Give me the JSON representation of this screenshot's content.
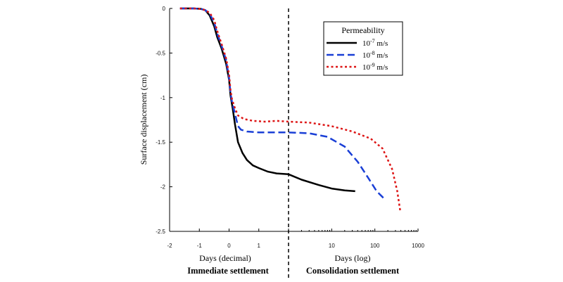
{
  "chart_data": {
    "type": "line",
    "xlabel_left": "Days (decimal)",
    "xlabel_right": "Days (log)",
    "ylabel": "Surface displacement (cm)",
    "ylim": [
      -2.5,
      0
    ],
    "left_axis": {
      "xlim": [
        -2,
        2
      ],
      "ticks": [
        "-2",
        "-1",
        "0",
        "1"
      ],
      "scale": "linear"
    },
    "right_axis": {
      "xlim": [
        1,
        1000
      ],
      "ticks": [
        "10",
        "100",
        "1000"
      ],
      "scale": "log"
    },
    "y_ticks": [
      "0",
      "-0.5",
      "-1",
      "-1.5",
      "-2",
      "-2.5"
    ],
    "regions": [
      "Immediate settlement",
      "Consolidation settlement"
    ],
    "legend": {
      "title": "Permeability",
      "position": "top-right",
      "entries": [
        {
          "base": "10",
          "exp": "-7",
          "unit": "m/s"
        },
        {
          "base": "10",
          "exp": "-8",
          "unit": "m/s"
        },
        {
          "base": "10",
          "exp": "-9",
          "unit": "m/s"
        }
      ]
    },
    "series": [
      {
        "color": "#000000",
        "dash": "solid",
        "left": [
          [
            -1.65,
            0
          ],
          [
            -1.2,
            0
          ],
          [
            -0.95,
            -0.005
          ],
          [
            -0.8,
            -0.02
          ],
          [
            -0.65,
            -0.08
          ],
          [
            -0.5,
            -0.2
          ],
          [
            -0.4,
            -0.32
          ],
          [
            -0.25,
            -0.45
          ],
          [
            -0.1,
            -0.62
          ],
          [
            0,
            -0.8
          ],
          [
            0.05,
            -0.98
          ],
          [
            0.12,
            -1.12
          ],
          [
            0.2,
            -1.3
          ],
          [
            0.3,
            -1.5
          ],
          [
            0.45,
            -1.62
          ],
          [
            0.6,
            -1.7
          ],
          [
            0.8,
            -1.76
          ],
          [
            1.0,
            -1.79
          ],
          [
            1.3,
            -1.83
          ],
          [
            1.6,
            -1.85
          ],
          [
            2,
            -1.86
          ]
        ],
        "right": [
          [
            1,
            -1.86
          ],
          [
            2,
            -1.92
          ],
          [
            5,
            -1.98
          ],
          [
            10,
            -2.02
          ],
          [
            20,
            -2.04
          ],
          [
            35,
            -2.05
          ]
        ]
      },
      {
        "color": "#1a3fd6",
        "dash": "dashed",
        "left": [
          [
            -1.65,
            0
          ],
          [
            -1.2,
            0
          ],
          [
            -0.95,
            -0.005
          ],
          [
            -0.8,
            -0.02
          ],
          [
            -0.65,
            -0.06
          ],
          [
            -0.5,
            -0.16
          ],
          [
            -0.4,
            -0.28
          ],
          [
            -0.25,
            -0.42
          ],
          [
            -0.1,
            -0.58
          ],
          [
            0,
            -0.78
          ],
          [
            0.05,
            -0.95
          ],
          [
            0.1,
            -1.05
          ],
          [
            0.2,
            -1.18
          ],
          [
            0.3,
            -1.32
          ],
          [
            0.4,
            -1.36
          ],
          [
            0.6,
            -1.38
          ],
          [
            1,
            -1.39
          ],
          [
            1.5,
            -1.39
          ],
          [
            2,
            -1.39
          ]
        ],
        "right": [
          [
            1,
            -1.39
          ],
          [
            3,
            -1.4
          ],
          [
            8,
            -1.44
          ],
          [
            20,
            -1.55
          ],
          [
            40,
            -1.72
          ],
          [
            70,
            -1.9
          ],
          [
            110,
            -2.05
          ],
          [
            170,
            -2.14
          ]
        ]
      },
      {
        "color": "#dd1515",
        "dash": "dotted",
        "left": [
          [
            -1.65,
            0
          ],
          [
            -1.2,
            0
          ],
          [
            -0.95,
            -0.005
          ],
          [
            -0.8,
            -0.02
          ],
          [
            -0.65,
            -0.05
          ],
          [
            -0.5,
            -0.13
          ],
          [
            -0.4,
            -0.25
          ],
          [
            -0.25,
            -0.4
          ],
          [
            -0.1,
            -0.56
          ],
          [
            0,
            -0.74
          ],
          [
            0.05,
            -0.92
          ],
          [
            0.1,
            -1.02
          ],
          [
            0.2,
            -1.12
          ],
          [
            0.3,
            -1.2
          ],
          [
            0.5,
            -1.24
          ],
          [
            0.8,
            -1.26
          ],
          [
            1.2,
            -1.27
          ],
          [
            1.6,
            -1.26
          ],
          [
            2,
            -1.27
          ]
        ],
        "right": [
          [
            1,
            -1.27
          ],
          [
            3,
            -1.28
          ],
          [
            10,
            -1.32
          ],
          [
            30,
            -1.38
          ],
          [
            80,
            -1.46
          ],
          [
            150,
            -1.57
          ],
          [
            250,
            -1.8
          ],
          [
            330,
            -2.05
          ],
          [
            390,
            -2.28
          ]
        ]
      }
    ]
  }
}
